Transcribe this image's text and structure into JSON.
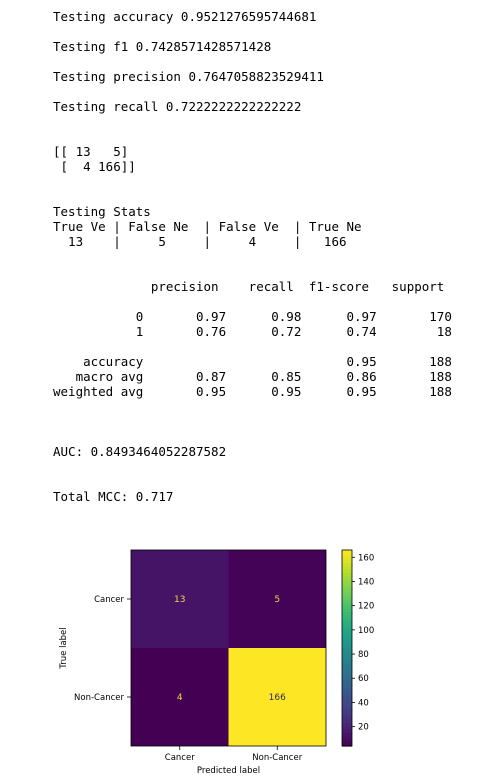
{
  "metrics": {
    "accuracy": "Testing accuracy 0.9521276595744681",
    "f1": "Testing f1 0.7428571428571428",
    "precision": "Testing precision 0.7647058823529411",
    "recall": "Testing recall 0.7222222222222222"
  },
  "matrix_text": [
    "[[ 13   5]",
    " [  4 166]]"
  ],
  "stats": {
    "title": "Testing Stats",
    "header": "True Ve | False Ne  | False Ve  | True Ne",
    "values": "  13    |     5     |     4     |   166"
  },
  "report": [
    "             precision    recall  f1-score   support",
    "",
    "           0       0.97      0.98      0.97       170",
    "           1       0.76      0.72      0.74        18",
    "",
    "    accuracy                           0.95       188",
    "   macro avg       0.87      0.85      0.86       188",
    "weighted avg       0.95      0.95      0.95       188"
  ],
  "auc": "AUC: 0.8493464052287582",
  "mcc": "Total MCC: 0.717",
  "chart_data": {
    "type": "heatmap",
    "row_labels": [
      "Cancer",
      "Non-Cancer"
    ],
    "col_labels": [
      "Cancer",
      "Non-Cancer"
    ],
    "values": [
      [
        13,
        5
      ],
      [
        4,
        166
      ]
    ],
    "xlabel": "Predicted label",
    "ylabel": "True label",
    "colorbar_ticks": [
      20,
      40,
      60,
      80,
      100,
      120,
      140,
      160
    ],
    "vmin": 4,
    "vmax": 166,
    "colormap": "viridis"
  }
}
